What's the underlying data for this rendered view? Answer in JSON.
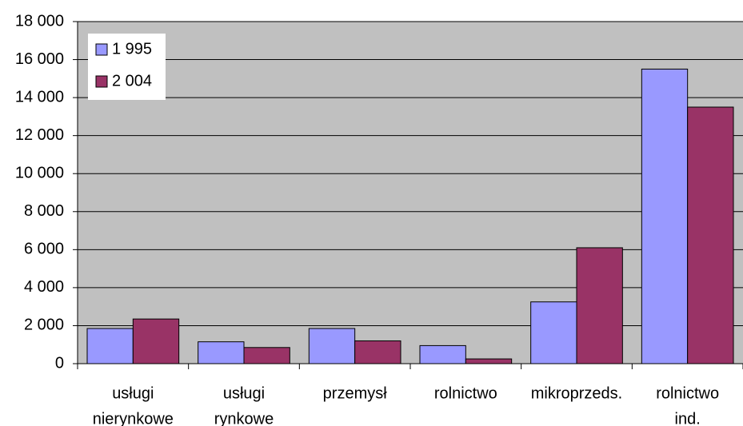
{
  "chart_data": {
    "type": "bar",
    "categories": [
      [
        "usługi",
        "nierynkowe"
      ],
      [
        "usługi",
        "rynkowe"
      ],
      [
        "przemysł"
      ],
      [
        "rolnictwo"
      ],
      [
        "mikroprzeds."
      ],
      [
        "rolnictwo",
        "ind."
      ]
    ],
    "series": [
      {
        "name": "1 995",
        "color": "#9999ff",
        "values": [
          1850,
          1150,
          1850,
          950,
          3250,
          15500
        ]
      },
      {
        "name": "2 004",
        "color": "#993366",
        "values": [
          2350,
          850,
          1200,
          250,
          6100,
          13500
        ]
      }
    ],
    "ylim": [
      0,
      18000
    ],
    "yticks": [
      0,
      {
        "value": 2000,
        "label": "2 000"
      },
      {
        "value": 4000,
        "label": "4 000"
      },
      {
        "value": 6000,
        "label": "6 000"
      },
      {
        "value": 8000,
        "label": "8 000"
      },
      {
        "value": 10000,
        "label": "10 000"
      },
      {
        "value": 12000,
        "label": "12 000"
      },
      {
        "value": 14000,
        "label": "14 000"
      },
      {
        "value": 16000,
        "label": "16 000"
      },
      {
        "value": 18000,
        "label": "18 000"
      }
    ],
    "grid": true,
    "legend": "top-left"
  }
}
